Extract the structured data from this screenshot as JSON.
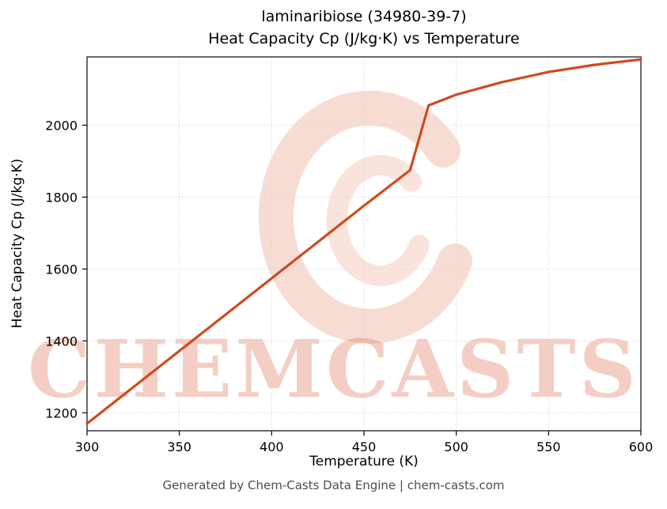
{
  "title": {
    "line1": "laminaribiose (34980-39-7)",
    "line2": "Heat Capacity Cp (J/kg·K) vs Temperature"
  },
  "watermark": {
    "text": "CHEMCASTS",
    "initial": "C",
    "color": "#d94f28"
  },
  "footer": {
    "text": "Generated by Chem-Casts Data Engine | chem-casts.com"
  },
  "chart_data": {
    "type": "line",
    "title": "laminaribiose (34980-39-7) — Heat Capacity Cp (J/kg·K) vs Temperature",
    "xlabel": "Temperature (K)",
    "ylabel": "Heat Capacity Cp (J/kg·K)",
    "x": [
      300,
      325,
      350,
      375,
      400,
      425,
      450,
      475,
      485,
      500,
      525,
      550,
      575,
      600
    ],
    "series": [
      {
        "name": "Heat Capacity Cp",
        "values": [
          1170,
          1271,
          1372,
          1473,
          1574,
          1675,
          1776,
          1875,
          2055,
          2085,
          2120,
          2148,
          2168,
          2183
        ]
      }
    ],
    "xlim": [
      300,
      600
    ],
    "ylim": [
      1150,
      2190
    ],
    "xticks": [
      300,
      350,
      400,
      450,
      500,
      550,
      600
    ],
    "yticks": [
      1200,
      1400,
      1600,
      1800,
      2000
    ],
    "grid": true,
    "legend": "none",
    "line_color": "#d1491f",
    "annotations": [
      "step discontinuity near 475–485 K (phase transition)"
    ]
  }
}
